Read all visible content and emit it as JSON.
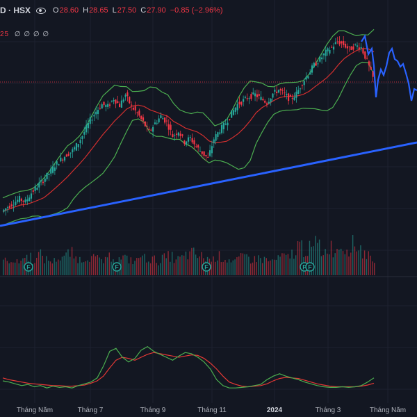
{
  "header": {
    "symbol": "D · HSX",
    "open_label": "O",
    "open": "28.60",
    "high_label": "H",
    "high": "28.65",
    "low_label": "L",
    "low": "27.50",
    "close_label": "C",
    "close": "27.90",
    "change": "−0.85 (−2.96%)"
  },
  "indicator_row": {
    "value": "25",
    "placeholders": "∅ ∅ ∅ ∅"
  },
  "dividend_marker": "F",
  "x_axis": [
    "Tháng Năm",
    "Tháng 7",
    "Tháng 9",
    "Tháng 11",
    "2024",
    "Tháng 3",
    "Tháng Năm"
  ],
  "colors": {
    "background": "#131722",
    "up": "#26a69a",
    "down": "#f23645",
    "bollinger": "#4caf50",
    "ma": "#d32f2f",
    "trendline": "#2962ff",
    "projection": "#2962ff",
    "stoch_k": "#4caf50",
    "stoch_d": "#e53935"
  },
  "chart_data": [
    {
      "type": "candlestick",
      "x": [
        "Tháng Năm",
        "Tháng 7",
        "Tháng 9",
        "Tháng 11",
        "2024",
        "Tháng 3",
        "Tháng Năm"
      ],
      "close_series": [
        14.3,
        14.8,
        15.2,
        15.6,
        15.3,
        16.2,
        16.9,
        17.5,
        18.2,
        19.0,
        19.6,
        20.1,
        20.5,
        21.3,
        22.4,
        23.6,
        24.5,
        25.2,
        25.0,
        25.8,
        25.1,
        26.2,
        25.0,
        24.3,
        23.4,
        22.4,
        23.3,
        24.0,
        23.4,
        22.0,
        22.5,
        21.4,
        21.8,
        20.9,
        20.3,
        19.7,
        21.7,
        22.6,
        23.3,
        24.3,
        25.2,
        25.6,
        26.0,
        26.2,
        25.8,
        25.4,
        26.3,
        26.7,
        26.2,
        25.7,
        26.3,
        27.4,
        28.3,
        29.2,
        29.8,
        30.5,
        31.0,
        31.6,
        31.3,
        30.8,
        31.2,
        31.0,
        29.6,
        27.9
      ],
      "last": {
        "open": 28.6,
        "high": 28.65,
        "low": 27.5,
        "close": 27.9
      }
    },
    {
      "type": "bar",
      "name": "volume",
      "values": [
        0.45,
        0.5,
        0.4,
        0.55,
        0.6,
        0.5,
        0.65,
        0.5,
        0.45,
        0.55,
        0.6,
        0.7,
        0.55,
        0.5,
        0.6,
        0.55,
        0.5,
        0.45,
        0.6,
        0.5,
        0.55,
        0.5,
        0.45,
        0.6,
        0.55,
        0.5,
        0.45,
        0.55,
        0.6,
        0.5,
        0.55,
        0.65,
        0.7,
        0.6,
        0.55,
        0.5,
        0.6,
        0.55,
        0.5,
        0.45,
        0.55,
        0.6,
        0.5,
        0.55,
        0.5,
        0.45,
        0.5,
        0.6,
        0.55,
        0.7,
        0.95,
        0.8,
        0.85,
        1.0,
        0.75,
        0.9,
        0.8,
        0.95,
        0.85,
        1.0,
        0.9,
        0.7,
        0.6,
        0.5
      ]
    },
    {
      "type": "line",
      "name": "stochastic",
      "series": [
        {
          "values": [
            20,
            18,
            15,
            12,
            14,
            10,
            12,
            8,
            11,
            9,
            10,
            8,
            12,
            15,
            18,
            25,
            45,
            70,
            75,
            60,
            52,
            58,
            72,
            78,
            70,
            65,
            60,
            55,
            62,
            68,
            66,
            60,
            52,
            40,
            22,
            12,
            8,
            8,
            9,
            10,
            12,
            14,
            22,
            28,
            32,
            28,
            25,
            22,
            18,
            15,
            12,
            10,
            9,
            9,
            10,
            9,
            10,
            12,
            18,
            25
          ]
        },
        {
          "values": [
            25,
            22,
            20,
            18,
            16,
            15,
            14,
            13,
            12,
            12,
            11,
            11,
            12,
            13,
            16,
            20,
            28,
            42,
            55,
            60,
            58,
            55,
            60,
            65,
            68,
            66,
            64,
            62,
            60,
            62,
            64,
            63,
            58,
            50,
            40,
            28,
            18,
            14,
            11,
            10,
            11,
            12,
            15,
            20,
            24,
            26,
            25,
            24,
            21,
            18,
            15,
            13,
            11,
            10,
            10,
            10,
            10,
            11,
            13,
            16
          ]
        }
      ],
      "ylim": [
        0,
        100
      ]
    }
  ]
}
